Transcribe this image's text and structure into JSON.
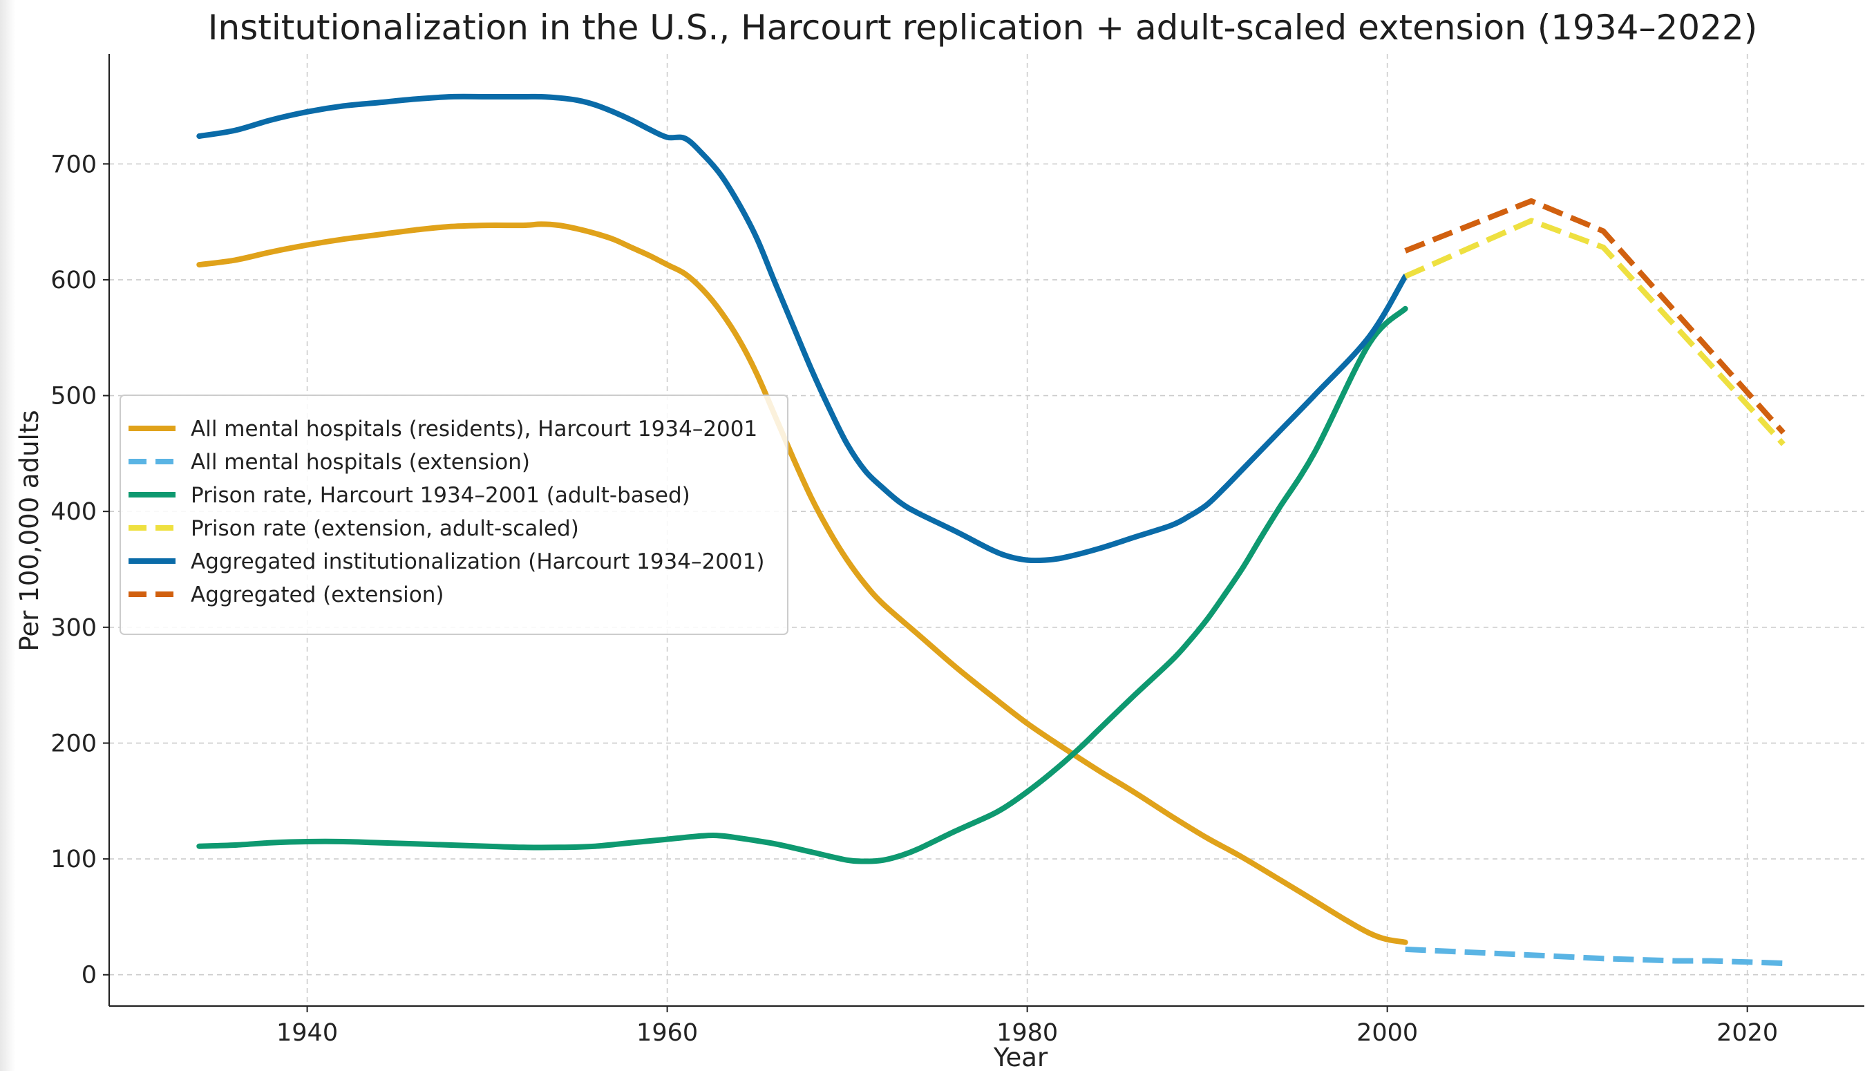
{
  "chart_data": {
    "type": "line",
    "title": "Institutionalization in the U.S., Harcourt replication + adult-scaled extension (1934–2022)",
    "xlabel": "Year",
    "ylabel": "Per 100,000 adults",
    "xlim": [
      1929,
      2026.5
    ],
    "ylim": [
      -27,
      795
    ],
    "x_ticks": [
      1940,
      1960,
      1980,
      2000,
      2020
    ],
    "y_ticks": [
      0,
      100,
      200,
      300,
      400,
      500,
      600,
      700
    ],
    "grid": true,
    "legend_position": "center-left",
    "series": [
      {
        "name": "All mental hospitals (residents), Harcourt 1934–2001",
        "color": "#E0A21A",
        "dash": "solid",
        "x": [
          1934,
          1936,
          1938,
          1940,
          1942,
          1944,
          1946,
          1948,
          1950,
          1952,
          1953,
          1954,
          1955,
          1956,
          1957,
          1958,
          1959,
          1960,
          1961,
          1962,
          1963,
          1964,
          1965,
          1966,
          1967,
          1968,
          1969,
          1970,
          1971,
          1972,
          1974,
          1976,
          1978,
          1980,
          1982,
          1984,
          1986,
          1988,
          1990,
          1992,
          1995,
          1999,
          2001
        ],
        "values": [
          613,
          617,
          624,
          630,
          635,
          639,
          643,
          646,
          647,
          647,
          648,
          647,
          644,
          640,
          635,
          628,
          621,
          613,
          605,
          591,
          572,
          548,
          518,
          482,
          446,
          412,
          383,
          358,
          337,
          320,
          293,
          266,
          241,
          217,
          196,
          176,
          157,
          137,
          118,
          101,
          73,
          36,
          28
        ]
      },
      {
        "name": "All mental hospitals (extension)",
        "color": "#5AB4E4",
        "dash": "dashed",
        "x": [
          2001,
          2008,
          2012,
          2014,
          2016,
          2018,
          2020,
          2022
        ],
        "values": [
          22,
          17,
          14,
          13,
          12,
          12,
          11,
          10
        ]
      },
      {
        "name": "Prison rate, Harcourt 1934–2001 (adult-based)",
        "color": "#0E9970",
        "dash": "solid",
        "x": [
          1934,
          1936,
          1938,
          1940,
          1942,
          1944,
          1946,
          1948,
          1950,
          1952,
          1954,
          1956,
          1958,
          1960,
          1962,
          1963,
          1964,
          1966,
          1968,
          1970,
          1971,
          1972,
          1973,
          1974,
          1976,
          1978,
          1979,
          1980,
          1981,
          1982,
          1983,
          1984,
          1986,
          1988,
          1989,
          1990,
          1991,
          1992,
          1993,
          1994,
          1996,
          1999,
          2001
        ],
        "values": [
          111,
          112,
          114,
          115,
          115,
          114,
          113,
          112,
          111,
          110,
          110,
          111,
          114,
          117,
          120,
          120,
          118,
          113,
          106,
          99,
          98,
          99,
          103,
          109,
          124,
          138,
          147,
          158,
          170,
          183,
          197,
          212,
          242,
          271,
          288,
          307,
          329,
          352,
          378,
          403,
          452,
          545,
          575
        ]
      },
      {
        "name": "Prison rate (extension, adult-scaled)",
        "color": "#EEE040",
        "dash": "dashed",
        "x": [
          2001,
          2008,
          2012,
          2022
        ],
        "values": [
          603,
          651,
          628,
          458
        ]
      },
      {
        "name": "Aggregated institutionalization (Harcourt 1934–2001)",
        "color": "#0A6BA8",
        "dash": "solid",
        "x": [
          1934,
          1936,
          1938,
          1940,
          1942,
          1944,
          1946,
          1948,
          1950,
          1952,
          1953,
          1954,
          1955,
          1956,
          1957,
          1958,
          1959,
          1960,
          1961,
          1962,
          1963,
          1964,
          1965,
          1966,
          1967,
          1968,
          1969,
          1970,
          1971,
          1972,
          1973,
          1974,
          1976,
          1978,
          1979,
          1980,
          1981,
          1982,
          1984,
          1986,
          1988,
          1989,
          1990,
          1991,
          1992,
          1994,
          1996,
          1999,
          2001
        ],
        "values": [
          724,
          729,
          738,
          745,
          750,
          753,
          756,
          758,
          758,
          758,
          758,
          757,
          755,
          751,
          745,
          738,
          730,
          723,
          722,
          708,
          690,
          665,
          635,
          597,
          560,
          523,
          489,
          458,
          435,
          420,
          407,
          398,
          383,
          367,
          361,
          358,
          358,
          360,
          368,
          378,
          388,
          396,
          406,
          421,
          437,
          469,
          501,
          551,
          603
        ]
      },
      {
        "name": "Aggregated (extension)",
        "color": "#D1600F",
        "dash": "dashed",
        "x": [
          2001,
          2008,
          2012,
          2022
        ],
        "values": [
          625,
          668,
          642,
          468
        ]
      }
    ]
  }
}
